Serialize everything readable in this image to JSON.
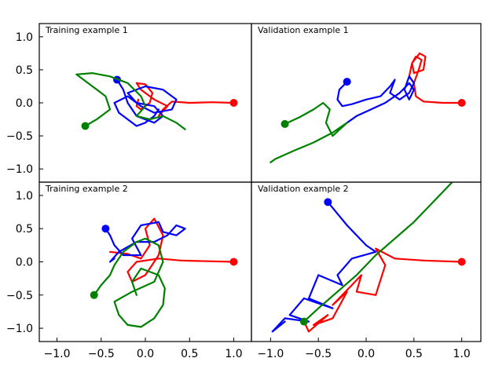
{
  "chart_data": [
    {
      "type": "line",
      "title": "Training example 1",
      "xlim": [
        -1.2,
        1.2
      ],
      "ylim": [
        -1.2,
        1.2
      ],
      "x_ticks": [],
      "y_ticks": [
        "1.0",
        "0.5",
        "0.0",
        "−0.5",
        "−1.0"
      ],
      "series": [
        {
          "color": "#ff0000",
          "end_marker": [
            1.0,
            0.0
          ],
          "x": [
            1.0,
            0.75,
            0.5,
            0.3,
            0.2,
            0.15,
            0.25,
            0.1,
            -0.05,
            -0.1,
            0.0,
            0.08,
            0.05,
            -0.05,
            -0.1,
            -0.08
          ],
          "y": [
            0.0,
            0.01,
            0.0,
            0.02,
            -0.1,
            -0.2,
            -0.05,
            0.05,
            0.2,
            0.3,
            0.28,
            0.15,
            0.0,
            -0.1,
            -0.05,
            0.05
          ]
        },
        {
          "color": "#0000ff",
          "end_marker": [
            -0.32,
            0.35
          ],
          "x": [
            -0.32,
            -0.25,
            -0.2,
            -0.1,
            0.1,
            0.2,
            0.1,
            -0.1,
            -0.2,
            0.0,
            0.2,
            0.35,
            0.3,
            0.1,
            -0.05,
            -0.2,
            -0.35,
            -0.3,
            -0.2,
            -0.1,
            0.0,
            0.1,
            0.15
          ],
          "y": [
            0.35,
            0.2,
            0.0,
            -0.2,
            -0.3,
            -0.2,
            -0.05,
            0.0,
            0.15,
            0.25,
            0.2,
            0.05,
            -0.1,
            -0.15,
            -0.05,
            0.1,
            0.0,
            -0.15,
            -0.25,
            -0.35,
            -0.3,
            -0.2,
            -0.1
          ]
        },
        {
          "color": "#008000",
          "end_marker": [
            -0.68,
            -0.35
          ],
          "x": [
            -0.68,
            -0.55,
            -0.4,
            -0.45,
            -0.7,
            -0.78,
            -0.6,
            -0.4,
            -0.2,
            -0.05,
            0.0,
            -0.1,
            0.05,
            0.2,
            0.35,
            0.45
          ],
          "y": [
            -0.35,
            -0.25,
            -0.1,
            0.1,
            0.35,
            0.43,
            0.45,
            0.4,
            0.3,
            0.1,
            -0.05,
            -0.2,
            -0.25,
            -0.2,
            -0.3,
            -0.4
          ]
        }
      ]
    },
    {
      "type": "line",
      "title": "Validation example 1",
      "xlim": [
        -1.2,
        1.2
      ],
      "ylim": [
        -1.2,
        1.2
      ],
      "x_ticks": [],
      "y_ticks": [],
      "series": [
        {
          "color": "#ff0000",
          "end_marker": [
            1.0,
            0.0
          ],
          "x": [
            1.0,
            0.8,
            0.6,
            0.52,
            0.5,
            0.55,
            0.58,
            0.52,
            0.48,
            0.5,
            0.6,
            0.62,
            0.56,
            0.48,
            0.45,
            0.5
          ],
          "y": [
            0.0,
            0.0,
            0.02,
            0.1,
            0.3,
            0.5,
            0.65,
            0.7,
            0.6,
            0.45,
            0.5,
            0.7,
            0.75,
            0.6,
            0.4,
            0.3
          ]
        },
        {
          "color": "#0000ff",
          "end_marker": [
            -0.2,
            0.32
          ],
          "x": [
            -0.2,
            -0.28,
            -0.3,
            -0.25,
            -0.15,
            0.0,
            0.15,
            0.25,
            0.3,
            0.25,
            0.35,
            0.45,
            0.5,
            0.45,
            0.4,
            0.45,
            0.5,
            0.45,
            0.35,
            0.2,
            0.05,
            -0.1,
            -0.2
          ],
          "y": [
            0.32,
            0.2,
            0.05,
            -0.05,
            -0.02,
            0.05,
            0.1,
            0.25,
            0.35,
            0.15,
            0.05,
            0.15,
            0.3,
            0.4,
            0.2,
            0.05,
            0.2,
            0.3,
            0.15,
            0.0,
            -0.1,
            -0.2,
            -0.3
          ]
        },
        {
          "color": "#008000",
          "end_marker": [
            -0.85,
            -0.32
          ],
          "x": [
            -0.85,
            -0.7,
            -0.55,
            -0.45,
            -0.38,
            -0.42,
            -0.35,
            -0.2,
            -0.35,
            -0.55,
            -0.75,
            -0.95,
            -1.0
          ],
          "y": [
            -0.32,
            -0.22,
            -0.1,
            0.0,
            -0.1,
            -0.3,
            -0.5,
            -0.3,
            -0.45,
            -0.6,
            -0.72,
            -0.85,
            -0.9
          ]
        }
      ]
    },
    {
      "type": "line",
      "title": "Training example 2",
      "xlim": [
        -1.2,
        1.2
      ],
      "ylim": [
        -1.2,
        1.2
      ],
      "x_ticks": [
        "−1.0",
        "−0.5",
        "0.0",
        "0.5",
        "1.0"
      ],
      "y_ticks": [
        "1.0",
        "0.5",
        "0.0",
        "−0.5",
        "−1.0"
      ],
      "series": [
        {
          "color": "#ff0000",
          "end_marker": [
            1.0,
            0.0
          ],
          "x": [
            1.0,
            0.7,
            0.4,
            0.15,
            -0.1,
            -0.2,
            -0.15,
            0.0,
            0.15,
            0.2,
            0.1,
            0.0,
            0.05,
            -0.05,
            -0.2,
            -0.4
          ],
          "y": [
            0.0,
            0.01,
            0.02,
            0.05,
            0.0,
            -0.15,
            -0.3,
            -0.2,
            0.1,
            0.4,
            0.65,
            0.5,
            0.25,
            0.05,
            0.12,
            0.15
          ]
        },
        {
          "color": "#0000ff",
          "end_marker": [
            -0.45,
            0.5
          ],
          "x": [
            -0.45,
            -0.4,
            -0.35,
            -0.25,
            -0.05,
            -0.15,
            -0.05,
            0.15,
            0.2,
            0.35,
            0.45,
            0.35,
            0.25,
            0.1,
            -0.1,
            -0.3,
            -0.4,
            -0.35
          ],
          "y": [
            0.5,
            0.4,
            0.25,
            0.1,
            0.1,
            0.35,
            0.55,
            0.6,
            0.45,
            0.4,
            0.5,
            0.55,
            0.4,
            0.3,
            0.3,
            0.15,
            0.0,
            0.05
          ]
        },
        {
          "color": "#008000",
          "end_marker": [
            -0.58,
            -0.5
          ],
          "x": [
            -0.58,
            -0.5,
            -0.4,
            -0.35,
            -0.25,
            -0.1,
            0.0,
            0.15,
            0.2,
            0.1,
            -0.15,
            -0.35,
            -0.3,
            -0.2,
            -0.05,
            0.1,
            0.2,
            0.22,
            0.15,
            -0.05,
            -0.15,
            -0.1
          ],
          "y": [
            -0.5,
            -0.35,
            -0.2,
            -0.05,
            0.15,
            0.3,
            0.35,
            0.25,
            0.0,
            -0.3,
            -0.45,
            -0.6,
            -0.8,
            -0.95,
            -0.98,
            -0.85,
            -0.65,
            -0.4,
            -0.2,
            -0.1,
            -0.3,
            -0.5
          ]
        }
      ]
    },
    {
      "type": "line",
      "title": "Validation example 2",
      "xlim": [
        -1.2,
        1.2
      ],
      "ylim": [
        -1.2,
        1.2
      ],
      "x_ticks": [
        "−1.0",
        "−0.5",
        "0.0",
        "0.5",
        "1.0"
      ],
      "y_ticks": [],
      "series": [
        {
          "color": "#ff0000",
          "end_marker": [
            1.0,
            0.0
          ],
          "x": [
            1.0,
            0.6,
            0.3,
            0.1,
            0.2,
            0.1,
            -0.1,
            -0.05,
            -0.15,
            -0.35,
            -0.2,
            -0.35,
            -0.55,
            -0.4,
            -0.6,
            -0.65
          ],
          "y": [
            0.0,
            0.02,
            0.05,
            0.2,
            -0.05,
            -0.5,
            -0.45,
            -0.2,
            -0.35,
            -0.65,
            -0.45,
            -0.85,
            -0.95,
            -0.8,
            -1.05,
            -0.9
          ]
        },
        {
          "color": "#0000ff",
          "end_marker": [
            -0.4,
            0.9
          ],
          "x": [
            -0.4,
            -0.2,
            0.0,
            0.1,
            -0.15,
            -0.3,
            -0.25,
            -0.5,
            -0.6,
            -0.35,
            -0.65,
            -0.8,
            -0.6,
            -0.85,
            -0.98,
            -0.85
          ],
          "y": [
            0.9,
            0.55,
            0.25,
            0.15,
            0.05,
            -0.2,
            -0.35,
            -0.2,
            -0.55,
            -0.7,
            -0.55,
            -0.8,
            -0.9,
            -0.85,
            -1.05,
            -0.9
          ]
        },
        {
          "color": "#008000",
          "end_marker": [
            -0.65,
            -0.9
          ],
          "x": [
            -0.65,
            -0.5,
            -0.3,
            -0.1,
            0.1,
            0.3,
            0.5,
            0.7,
            0.9
          ],
          "y": [
            -0.9,
            -0.7,
            -0.45,
            -0.2,
            0.1,
            0.35,
            0.6,
            0.9,
            1.2
          ]
        }
      ]
    }
  ]
}
